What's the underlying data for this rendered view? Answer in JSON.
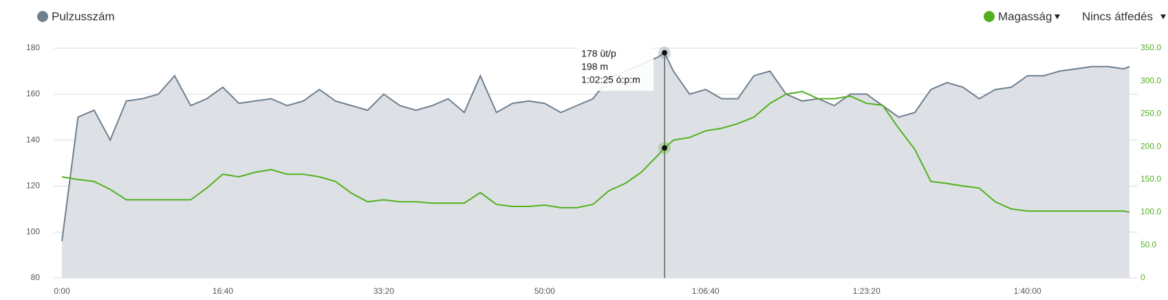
{
  "chart_data": {
    "type": "line",
    "x": [
      0,
      100,
      200,
      300,
      400,
      500,
      600,
      700,
      800,
      900,
      1000,
      1100,
      1200,
      1300,
      1400,
      1500,
      1600,
      1700,
      1800,
      1900,
      2000,
      2100,
      2200,
      2300,
      2400,
      2500,
      2600,
      2700,
      2800,
      2900,
      3000,
      3100,
      3200,
      3300,
      3400,
      3500,
      3600,
      3700,
      3745,
      3800,
      3900,
      4000,
      4100,
      4200,
      4300,
      4400,
      4500,
      4600,
      4700,
      4800,
      4900,
      5000,
      5100,
      5200,
      5300,
      5400,
      5500,
      5600,
      5700,
      5800,
      5900,
      6000,
      6100,
      6200,
      6300,
      6400,
      6500,
      6600,
      6634
    ],
    "series": [
      {
        "name": "Pulzusszám",
        "color": "#6e7f8f",
        "fill": "#dde1e5",
        "values": [
          96,
          150,
          153,
          140,
          157,
          158,
          160,
          168,
          155,
          158,
          163,
          156,
          157,
          158,
          155,
          157,
          162,
          157,
          155,
          153,
          160,
          155,
          153,
          155,
          158,
          152,
          168,
          152,
          156,
          157,
          156,
          152,
          155,
          158,
          167,
          170,
          173,
          176,
          178,
          170,
          160,
          162,
          158,
          158,
          168,
          170,
          160,
          157,
          158,
          155,
          160,
          160,
          155,
          150,
          152,
          162,
          165,
          163,
          158,
          162,
          163,
          168,
          168,
          170,
          171,
          172,
          172,
          171,
          172
        ]
      },
      {
        "name": "Magasság",
        "color": "#52b01e",
        "axis": "y2",
        "values": [
          154,
          150,
          147,
          135,
          119,
          119,
          119,
          119,
          119,
          137,
          158,
          154,
          161,
          165,
          158,
          158,
          154,
          147,
          129,
          116,
          119,
          116,
          116,
          114,
          114,
          114,
          130,
          112,
          109,
          109,
          111,
          107,
          107,
          112,
          133,
          144,
          161,
          186,
          198,
          210,
          214,
          224,
          228,
          235,
          245,
          266,
          280,
          284,
          273,
          273,
          277,
          266,
          263,
          228,
          196,
          147,
          144,
          140,
          137,
          116,
          105,
          102,
          102,
          102,
          102,
          102,
          102,
          102,
          100
        ]
      }
    ],
    "overlay": "Nincs átfedés",
    "xlim": [
      0,
      6634
    ],
    "xticks": [
      {
        "value": 0,
        "label": "0:00"
      },
      {
        "value": 1000,
        "label": "16:40"
      },
      {
        "value": 2000,
        "label": "33:20"
      },
      {
        "value": 3000,
        "label": "50:00"
      },
      {
        "value": 4000,
        "label": "1:06:40"
      },
      {
        "value": 5000,
        "label": "1:23:20"
      },
      {
        "value": 6000,
        "label": "1:40:00"
      }
    ],
    "ylim": [
      80,
      180
    ],
    "yticks": [
      80,
      100,
      120,
      140,
      160,
      180
    ],
    "y2lim": [
      0,
      350
    ],
    "y2ticks": [
      0,
      {
        "value": 50,
        "label": "50.0"
      },
      {
        "value": 100,
        "label": "100.0"
      },
      {
        "value": 150,
        "label": "150.0"
      },
      {
        "value": 200,
        "label": "200.0"
      },
      {
        "value": 250,
        "label": "250.0"
      },
      {
        "value": 300,
        "label": "300.0"
      },
      {
        "value": 350,
        "label": "350.0"
      }
    ],
    "grid": true,
    "tooltip": {
      "x": 3745,
      "lines": [
        "178 ût/p",
        "198 m",
        "1:02:25 ó:p:m"
      ]
    }
  }
}
